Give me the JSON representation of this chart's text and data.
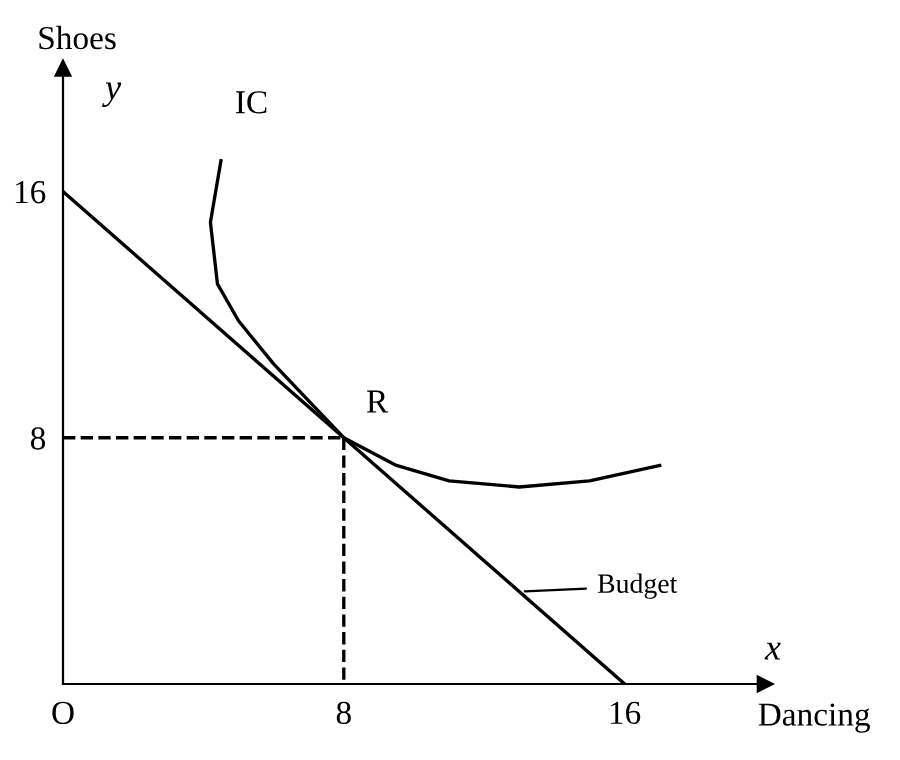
{
  "chart_data": {
    "type": "line",
    "xlabel": "Dancing",
    "ylabel": "Shoes",
    "xlim": [
      0,
      20
    ],
    "ylim": [
      0,
      20
    ],
    "xticks": [
      {
        "value": 0,
        "label": "O"
      },
      8,
      16
    ],
    "yticks": [
      8,
      16
    ],
    "grid": false,
    "legend": false,
    "series": [
      {
        "x": [
          0,
          16
        ],
        "values": [
          16,
          0
        ],
        "color": "#000000",
        "line_style": "solid"
      },
      {
        "x": [
          4.5,
          4.2,
          4.4,
          5,
          6,
          7,
          8,
          9.5,
          11,
          13,
          15,
          17
        ],
        "values": [
          17,
          15,
          13,
          11.8,
          10.4,
          9.2,
          8,
          7.1,
          6.6,
          6.4,
          6.6,
          7.1
        ],
        "color": "#000000",
        "line_style": "solid"
      },
      {
        "x": [
          0,
          8
        ],
        "values": [
          8,
          8
        ],
        "color": "#000000",
        "line_style": "dashed"
      },
      {
        "x": [
          8,
          8
        ],
        "values": [
          8,
          0
        ],
        "color": "#000000",
        "line_style": "dashed"
      }
    ],
    "annotations": [
      {
        "text": "IC",
        "x": 4.5,
        "y": 17
      },
      {
        "text": "R",
        "x": 8,
        "y": 8
      },
      {
        "text": "Budget",
        "x": 13,
        "y": 3
      },
      "y",
      "x"
    ]
  }
}
